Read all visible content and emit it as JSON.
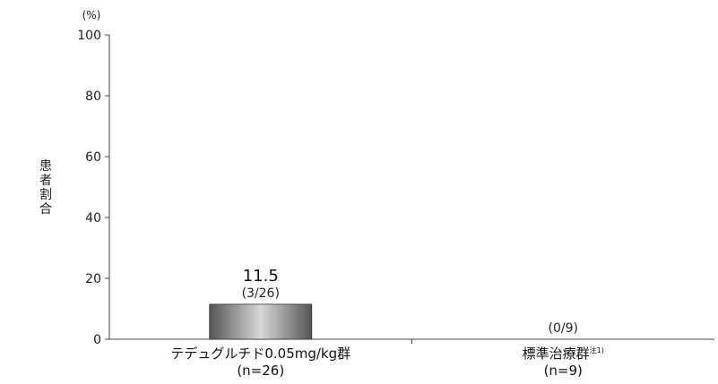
{
  "chart_data": {
    "type": "bar",
    "categories": [
      "テデュグルチド0.05mg/kg群",
      "標準治療群"
    ],
    "category_note_marks": [
      "",
      "注1)"
    ],
    "category_sublabels": [
      "(n=26)",
      "(n=9)"
    ],
    "values": [
      11.5,
      0
    ],
    "value_labels": [
      "11.5",
      ""
    ],
    "value_sublabels": [
      "(3/26)",
      "(0/9)"
    ],
    "ylabel": "患者割合",
    "yunit": "(%)",
    "ylim": [
      0,
      100
    ],
    "yticks": [
      0,
      20,
      40,
      60,
      80,
      100
    ],
    "grid": false,
    "legend": "none",
    "bar_colors": [
      "#555555",
      "#d8d8d8"
    ]
  }
}
